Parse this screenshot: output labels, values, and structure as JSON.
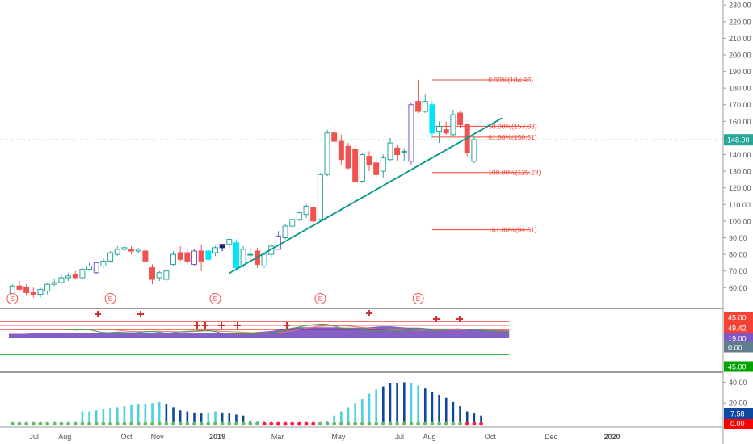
{
  "chart_data": {
    "type": "candlestick",
    "price_axis": {
      "min": 48,
      "max": 233,
      "ticks": [
        "230.00",
        "220.00",
        "210.00",
        "200.00",
        "190.00",
        "180.00",
        "170.00",
        "160.00",
        "150.00",
        "140.00",
        "130.00",
        "120.00",
        "110.00",
        "100.00",
        "90.00",
        "80.00",
        "70.00",
        "60.00"
      ]
    },
    "last_price": {
      "value": 148.9,
      "label": "148.90",
      "color": "#26a69a"
    },
    "x_axis": {
      "labels": [
        {
          "text": "Jul",
          "week": 3.6
        },
        {
          "text": "Aug",
          "week": 8
        },
        {
          "text": "Oct",
          "week": 16.8
        },
        {
          "text": "Nov",
          "week": 21.2
        },
        {
          "text": "2019",
          "week": 29.8
        },
        {
          "text": "Mar",
          "week": 38.4
        },
        {
          "text": "May",
          "week": 47.1
        },
        {
          "text": "Jul",
          "week": 55.8
        },
        {
          "text": "Aug",
          "week": 60.1
        },
        {
          "text": "Oct",
          "week": 68.8
        },
        {
          "text": "Dec",
          "week": 77.5
        },
        {
          "text": "2020",
          "week": 86.2
        }
      ]
    },
    "candles": [
      {
        "o": 56,
        "h": 62,
        "l": 55,
        "c": 61,
        "color": "#26a69a"
      },
      {
        "o": 61,
        "h": 64,
        "l": 58,
        "c": 59,
        "color": "#ef5350"
      },
      {
        "o": 60,
        "h": 62,
        "l": 55,
        "c": 57,
        "color": "#ef5350"
      },
      {
        "o": 57,
        "h": 60,
        "l": 54,
        "c": 56,
        "color": "#ef5350"
      },
      {
        "o": 56,
        "h": 60,
        "l": 54,
        "c": 59,
        "color": "#26a69a"
      },
      {
        "o": 58,
        "h": 63,
        "l": 56,
        "c": 62,
        "color": "#26a69a"
      },
      {
        "o": 62,
        "h": 65,
        "l": 61,
        "c": 63,
        "color": "#26a69a"
      },
      {
        "o": 63,
        "h": 68,
        "l": 62,
        "c": 66,
        "color": "#26a69a"
      },
      {
        "o": 66,
        "h": 69,
        "l": 64,
        "c": 67,
        "color": "#26a69a"
      },
      {
        "o": 68,
        "h": 70,
        "l": 65,
        "c": 66,
        "color": "#ef5350"
      },
      {
        "o": 66,
        "h": 72,
        "l": 65,
        "c": 71,
        "color": "#26a69a"
      },
      {
        "o": 71,
        "h": 75,
        "l": 70,
        "c": 73,
        "color": "#26a69a"
      },
      {
        "o": 69,
        "h": 75,
        "l": 68,
        "c": 75,
        "color": "#7e57c2"
      },
      {
        "o": 73,
        "h": 78,
        "l": 72,
        "c": 76,
        "color": "#26a69a"
      },
      {
        "o": 76,
        "h": 82,
        "l": 75,
        "c": 81,
        "color": "#26a69a"
      },
      {
        "o": 80,
        "h": 85,
        "l": 79,
        "c": 83,
        "color": "#26a69a"
      },
      {
        "o": 83,
        "h": 86,
        "l": 82,
        "c": 84,
        "color": "#26a69a"
      },
      {
        "o": 83,
        "h": 85,
        "l": 80,
        "c": 82,
        "color": "#ef5350"
      },
      {
        "o": 82,
        "h": 84,
        "l": 81,
        "c": 83,
        "color": "#26a69a"
      },
      {
        "o": 82,
        "h": 83,
        "l": 75,
        "c": 76,
        "color": "#ef5350"
      },
      {
        "o": 72,
        "h": 74,
        "l": 62,
        "c": 65,
        "color": "#ef5350"
      },
      {
        "o": 66,
        "h": 70,
        "l": 64,
        "c": 69,
        "color": "#26a69a"
      },
      {
        "o": 65,
        "h": 71,
        "l": 64,
        "c": 70,
        "color": "#26a69a"
      },
      {
        "o": 74,
        "h": 82,
        "l": 73,
        "c": 80,
        "color": "#26a69a"
      },
      {
        "o": 81,
        "h": 85,
        "l": 76,
        "c": 77,
        "color": "#ef5350"
      },
      {
        "o": 81,
        "h": 83,
        "l": 74,
        "c": 76,
        "color": "#ef5350"
      },
      {
        "o": 74,
        "h": 83,
        "l": 73,
        "c": 82,
        "color": "#7e57c2"
      },
      {
        "o": 82,
        "h": 86,
        "l": 70,
        "c": 76,
        "color": "#ef5350"
      },
      {
        "o": 77,
        "h": 83,
        "l": 76,
        "c": 82,
        "color": "#00e5ff"
      },
      {
        "o": 81,
        "h": 85,
        "l": 79,
        "c": 84,
        "color": "#26a69a"
      },
      {
        "o": 84,
        "h": 86,
        "l": 82,
        "c": 86,
        "color": "#1a237e"
      },
      {
        "o": 86,
        "h": 90,
        "l": 84,
        "c": 89,
        "color": "#26a69a"
      },
      {
        "o": 87,
        "h": 89,
        "l": 70,
        "c": 72,
        "color": "#00e5ff"
      },
      {
        "o": 73,
        "h": 85,
        "l": 72,
        "c": 83,
        "color": "#26a69a"
      },
      {
        "o": 80,
        "h": 84,
        "l": 76,
        "c": 80,
        "color": "#26a69a"
      },
      {
        "o": 82,
        "h": 84,
        "l": 72,
        "c": 74,
        "color": "#ef5350"
      },
      {
        "o": 73,
        "h": 81,
        "l": 72,
        "c": 80,
        "color": "#26a69a"
      },
      {
        "o": 80,
        "h": 86,
        "l": 78,
        "c": 85,
        "color": "#26a69a"
      },
      {
        "o": 83,
        "h": 94,
        "l": 83,
        "c": 91,
        "color": "#7e57c2"
      },
      {
        "o": 90,
        "h": 98,
        "l": 89,
        "c": 97,
        "color": "#26a69a"
      },
      {
        "o": 97,
        "h": 102,
        "l": 96,
        "c": 101,
        "color": "#26a69a"
      },
      {
        "o": 101,
        "h": 106,
        "l": 100,
        "c": 105,
        "color": "#26a69a"
      },
      {
        "o": 104,
        "h": 110,
        "l": 102,
        "c": 109,
        "color": "#26a69a"
      },
      {
        "o": 108,
        "h": 109,
        "l": 95,
        "c": 100,
        "color": "#ef5350"
      },
      {
        "o": 101,
        "h": 129,
        "l": 100,
        "c": 128,
        "color": "#26a69a"
      },
      {
        "o": 128,
        "h": 155,
        "l": 127,
        "c": 153,
        "color": "#26a69a"
      },
      {
        "o": 153,
        "h": 157,
        "l": 147,
        "c": 148,
        "color": "#ef5350"
      },
      {
        "o": 148,
        "h": 152,
        "l": 134,
        "c": 137,
        "color": "#ef5350"
      },
      {
        "o": 145,
        "h": 147,
        "l": 131,
        "c": 132,
        "color": "#ef5350"
      },
      {
        "o": 143,
        "h": 146,
        "l": 123,
        "c": 124,
        "color": "#ef5350"
      },
      {
        "o": 124,
        "h": 141,
        "l": 123,
        "c": 140,
        "color": "#26a69a"
      },
      {
        "o": 139,
        "h": 142,
        "l": 130,
        "c": 134,
        "color": "#ef5350"
      },
      {
        "o": 135,
        "h": 138,
        "l": 126,
        "c": 128,
        "color": "#ef5350"
      },
      {
        "o": 130,
        "h": 140,
        "l": 126,
        "c": 138,
        "color": "#26a69a"
      },
      {
        "o": 137,
        "h": 150,
        "l": 136,
        "c": 147,
        "color": "#26a69a"
      },
      {
        "o": 144,
        "h": 146,
        "l": 136,
        "c": 140,
        "color": "#ef5350"
      },
      {
        "o": 142,
        "h": 144,
        "l": 136,
        "c": 141,
        "color": "#26a69a"
      },
      {
        "o": 136,
        "h": 171,
        "l": 134,
        "c": 170,
        "color": "#7e57c2"
      },
      {
        "o": 172,
        "h": 185,
        "l": 165,
        "c": 166,
        "color": "#ef5350"
      },
      {
        "o": 166,
        "h": 176,
        "l": 165,
        "c": 172,
        "color": "#26a69a"
      },
      {
        "o": 170,
        "h": 172,
        "l": 150,
        "c": 153,
        "color": "#00e5ff"
      },
      {
        "o": 154,
        "h": 160,
        "l": 147,
        "c": 157,
        "color": "#26a69a"
      },
      {
        "o": 155,
        "h": 160,
        "l": 152,
        "c": 153,
        "color": "#ef5350"
      },
      {
        "o": 152,
        "h": 167,
        "l": 151,
        "c": 164,
        "color": "#26a69a"
      },
      {
        "o": 165,
        "h": 166,
        "l": 156,
        "c": 158,
        "color": "#ef5350"
      },
      {
        "o": 158,
        "h": 159,
        "l": 139,
        "c": 141,
        "color": "#ef5350"
      },
      {
        "o": 136,
        "h": 151,
        "l": 135,
        "c": 149,
        "color": "#26a69a"
      }
    ],
    "trendline": {
      "from": {
        "week": 31.5,
        "value": 68.7
      },
      "to": {
        "week": 70.5,
        "value": 162
      },
      "color": "#009688"
    },
    "fibonacci": [
      {
        "label": "0.00%(184.93)",
        "value": 184.93
      },
      {
        "label": "50.00%(157.08)",
        "value": 157.08
      },
      {
        "label": "61.80%(150.51)",
        "value": 150.51
      },
      {
        "label": "100.00%(129.23)",
        "value": 129.23
      },
      {
        "label": "161.80%(94.81)",
        "value": 94.81
      }
    ],
    "fib_color": "#f44336",
    "earnings_markers": {
      "label": "E",
      "weeks": [
        0.5,
        14.5,
        29.5,
        44.5,
        58.5
      ]
    },
    "oscillator": {
      "range": [
        -70,
        70
      ],
      "levels": [
        {
          "label": "45.00",
          "value": 45,
          "color": "#f44336"
        },
        {
          "label": "49.42",
          "value": 49.42,
          "color": "#f44336"
        },
        {
          "label": "19.00",
          "value": 19,
          "color": "#7e57c2"
        },
        {
          "label": "0.00",
          "value": 0,
          "color": "#607d8b"
        },
        {
          "label": "-45.00",
          "value": -45,
          "color": "#00a300"
        }
      ],
      "band_level": 45,
      "fast_line": [
        30,
        30,
        30,
        28,
        27,
        26,
        27,
        28,
        25,
        20,
        16,
        15,
        16,
        17,
        16,
        15,
        14,
        16,
        18,
        20,
        19,
        17,
        14,
        13,
        16,
        18,
        20,
        21,
        22,
        24,
        24,
        23,
        19,
        14,
        12,
        11,
        10,
        10,
        11,
        10,
        10,
        12,
        14,
        16,
        18,
        22,
        27,
        34,
        38,
        42,
        45,
        48,
        50,
        50,
        48,
        43,
        36,
        34,
        33,
        30,
        27,
        25,
        23,
        22,
        23,
        24,
        25,
        24,
        23,
        24,
        26,
        27,
        28,
        26,
        24,
        23,
        25,
        28,
        30,
        31,
        30,
        29,
        28,
        27,
        25,
        23,
        21,
        20,
        18,
        16
      ],
      "slow_line": [
        28,
        29,
        30,
        30,
        29,
        28,
        28,
        29,
        29,
        29,
        29,
        28,
        27,
        25,
        23,
        21,
        20,
        19,
        19,
        20,
        21,
        21,
        20,
        19,
        19,
        18,
        18,
        19,
        20,
        21,
        22,
        22,
        22,
        21,
        20,
        19,
        18,
        17,
        16,
        15,
        14,
        14,
        14,
        14,
        15,
        17,
        20,
        23,
        27,
        31,
        35,
        38,
        41,
        42,
        43,
        43,
        43,
        43,
        42,
        40,
        38,
        36,
        34,
        32,
        30,
        29,
        28,
        27,
        26,
        25,
        25,
        25,
        25,
        25,
        25,
        26,
        26,
        26,
        27,
        27,
        27,
        28,
        28,
        27,
        27,
        26,
        26,
        25,
        24,
        22
      ],
      "crosses": [
        30,
        44,
        64,
        68,
        72,
        78,
        83,
        92,
        122,
        153,
        168
      ],
      "area_top": [
        10,
        10,
        10,
        10,
        11,
        11,
        11,
        11,
        11,
        11,
        11,
        11,
        11,
        11,
        11,
        12,
        12,
        12,
        12,
        12,
        12,
        12,
        12,
        12,
        12,
        12,
        12,
        12,
        12,
        12,
        12,
        12,
        12,
        12,
        11,
        11,
        11,
        11,
        11,
        12,
        12,
        12,
        13,
        13,
        14,
        15,
        16,
        17,
        19,
        21,
        23,
        24,
        25,
        25,
        25,
        25,
        25,
        25,
        25,
        24,
        24,
        24,
        24,
        24,
        25,
        26,
        27,
        27,
        27,
        26,
        25,
        24,
        24,
        24,
        23,
        22,
        22,
        22,
        22,
        22,
        22,
        21,
        21,
        20,
        20,
        19,
        19,
        18,
        18,
        18
      ]
    },
    "histogram": {
      "range": [
        0,
        45
      ],
      "ticks": [
        {
          "label": "40.00",
          "value": 40
        },
        {
          "label": "20.00",
          "value": 20
        }
      ],
      "last_value": {
        "label": "7.58",
        "color": "#0d47a1"
      },
      "zero_value": {
        "label": "0.00",
        "color": "#ff0000"
      },
      "bars": [
        0,
        0,
        0,
        0,
        0,
        0,
        0,
        0,
        0,
        0,
        12,
        12,
        13,
        14,
        15,
        16,
        17,
        18,
        19,
        19,
        20,
        21,
        19,
        16,
        13,
        12,
        11,
        10,
        11,
        12,
        11,
        10,
        9,
        8,
        3,
        2,
        1,
        0,
        0,
        0,
        0,
        0,
        0,
        0,
        1,
        3,
        8,
        12,
        16,
        20,
        24,
        29,
        33,
        36,
        39,
        39,
        40,
        39,
        37,
        34,
        31,
        28,
        25,
        21,
        17,
        12,
        10,
        8
      ],
      "bar_colors": [
        "#4dd0e1",
        "#4dd0e1",
        "#4dd0e1",
        "#4dd0e1",
        "#4dd0e1",
        "#4dd0e1",
        "#4dd0e1",
        "#4dd0e1",
        "#4dd0e1",
        "#4dd0e1",
        "#4dd0e1",
        "#4dd0e1",
        "#4dd0e1",
        "#4dd0e1",
        "#4dd0e1",
        "#4dd0e1",
        "#4dd0e1",
        "#4dd0e1",
        "#4dd0e1",
        "#4dd0e1",
        "#4dd0e1",
        "#4dd0e1",
        "#0d47a1",
        "#0d47a1",
        "#0d47a1",
        "#0d47a1",
        "#0d47a1",
        "#0d47a1",
        "#4dd0e1",
        "#4dd0e1",
        "#0d47a1",
        "#0d47a1",
        "#0d47a1",
        "#0d47a1",
        "#0d47a1",
        "#0d47a1",
        "#0d47a1",
        "#0d47a1",
        "#0d47a1",
        "#0d47a1",
        "#0d47a1",
        "#0d47a1",
        "#0d47a1",
        "#0d47a1",
        "#4dd0e1",
        "#4dd0e1",
        "#4dd0e1",
        "#4dd0e1",
        "#4dd0e1",
        "#4dd0e1",
        "#4dd0e1",
        "#4dd0e1",
        "#4dd0e1",
        "#0d47a1",
        "#0d47a1",
        "#0d47a1",
        "#0d47a1",
        "#4dd0e1",
        "#4dd0e1",
        "#0d47a1",
        "#0d47a1",
        "#0d47a1",
        "#0d47a1",
        "#0d47a1",
        "#0d47a1",
        "#0d47a1",
        "#0d47a1",
        "#0d47a1"
      ],
      "dot_colors": [
        "#66bb6a",
        "#66bb6a",
        "#66bb6a",
        "#66bb6a",
        "#66bb6a",
        "#66bb6a",
        "#66bb6a",
        "#66bb6a",
        "#66bb6a",
        "#66bb6a",
        "#66bb6a",
        "#66bb6a",
        "#66bb6a",
        "#66bb6a",
        "#66bb6a",
        "#66bb6a",
        "#66bb6a",
        "#66bb6a",
        "#66bb6a",
        "#66bb6a",
        "#66bb6a",
        "#66bb6a",
        "#66bb6a",
        "#66bb6a",
        "#66bb6a",
        "#66bb6a",
        "#66bb6a",
        "#66bb6a",
        "#66bb6a",
        "#66bb6a",
        "#66bb6a",
        "#66bb6a",
        "#66bb6a",
        "#66bb6a",
        "#66bb6a",
        "#66bb6a",
        "#ff1744",
        "#ff1744",
        "#ff1744",
        "#ff1744",
        "#ff1744",
        "#ff1744",
        "#ff1744",
        "#ff1744",
        "#66bb6a",
        "#66bb6a",
        "#66bb6a",
        "#66bb6a",
        "#66bb6a",
        "#66bb6a",
        "#66bb6a",
        "#66bb6a",
        "#66bb6a",
        "#66bb6a",
        "#66bb6a",
        "#66bb6a",
        "#66bb6a",
        "#66bb6a",
        "#66bb6a",
        "#66bb6a",
        "#66bb6a",
        "#66bb6a",
        "#66bb6a",
        "#66bb6a",
        "#66bb6a",
        "#ff1744",
        "#ff1744",
        "#ff1744"
      ]
    }
  }
}
